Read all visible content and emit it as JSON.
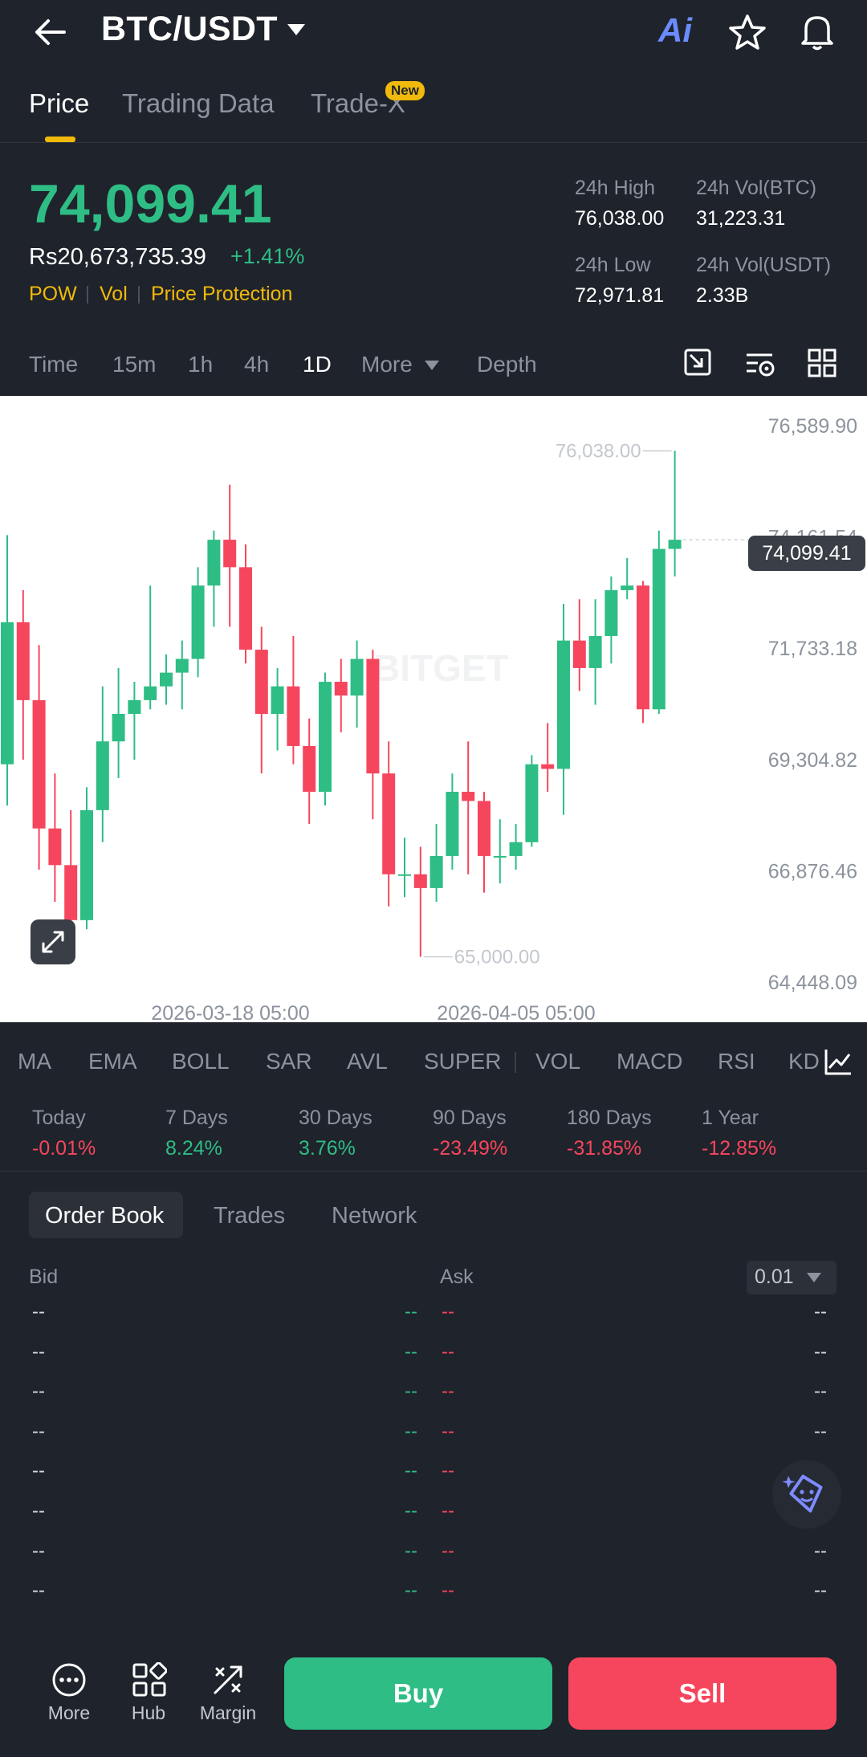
{
  "header": {
    "title": "BTC/USDT",
    "ai_label": "Ai"
  },
  "tabs": [
    {
      "label": "Price",
      "active": true
    },
    {
      "label": "Trading Data",
      "active": false
    },
    {
      "label": "Trade-X",
      "active": false,
      "badge": "New"
    }
  ],
  "price": {
    "last": "74,099.41",
    "fiat": "Rs20,673,735.39",
    "change_pct": "+1.41%",
    "tags": [
      "POW",
      "Vol",
      "Price Protection"
    ]
  },
  "stats": {
    "high_label": "24h High",
    "high": "76,038.00",
    "vol_btc_label": "24h Vol(BTC)",
    "vol_btc": "31,223.31",
    "low_label": "24h Low",
    "low": "72,971.81",
    "vol_usdt_label": "24h Vol(USDT)",
    "vol_usdt": "2.33B"
  },
  "intervals": [
    {
      "label": "Time",
      "active": false
    },
    {
      "label": "15m",
      "active": false
    },
    {
      "label": "1h",
      "active": false
    },
    {
      "label": "4h",
      "active": false
    },
    {
      "label": "1D",
      "active": true
    },
    {
      "label": "More",
      "active": false
    },
    {
      "label": "Depth",
      "active": false
    }
  ],
  "chart_data": {
    "type": "candlestick",
    "y_ticks": [
      "76,589.90",
      "74,161.54",
      "71,733.18",
      "69,304.82",
      "66,876.46",
      "64,448.09"
    ],
    "ylim": [
      64448.09,
      76589.9
    ],
    "x_ticks": [
      "2026-03-18 05:00",
      "2026-04-05 05:00"
    ],
    "last_price_label": "74,099.41",
    "last_price": 74099.41,
    "high_marker": "76,038.00",
    "low_marker": "65,000.00",
    "watermark": "BITGET",
    "candles": [
      {
        "o": 69200,
        "h": 74200,
        "l": 68300,
        "c": 72300
      },
      {
        "o": 72300,
        "h": 73000,
        "l": 69300,
        "c": 70600
      },
      {
        "o": 70600,
        "h": 71800,
        "l": 66900,
        "c": 67800
      },
      {
        "o": 67800,
        "h": 69000,
        "l": 66200,
        "c": 67000
      },
      {
        "o": 67000,
        "h": 68200,
        "l": 65300,
        "c": 65800
      },
      {
        "o": 65800,
        "h": 68700,
        "l": 65600,
        "c": 68200
      },
      {
        "o": 68200,
        "h": 70900,
        "l": 67500,
        "c": 69700
      },
      {
        "o": 69700,
        "h": 71300,
        "l": 68900,
        "c": 70300
      },
      {
        "o": 70300,
        "h": 71000,
        "l": 69300,
        "c": 70600
      },
      {
        "o": 70600,
        "h": 73100,
        "l": 70400,
        "c": 70900
      },
      {
        "o": 70900,
        "h": 71600,
        "l": 70500,
        "c": 71200
      },
      {
        "o": 71200,
        "h": 71900,
        "l": 70400,
        "c": 71500
      },
      {
        "o": 71500,
        "h": 73500,
        "l": 71100,
        "c": 73100
      },
      {
        "o": 73100,
        "h": 74300,
        "l": 72200,
        "c": 74100
      },
      {
        "o": 74100,
        "h": 75300,
        "l": 72200,
        "c": 73500
      },
      {
        "o": 73500,
        "h": 74000,
        "l": 71400,
        "c": 71700
      },
      {
        "o": 71700,
        "h": 72200,
        "l": 69000,
        "c": 70300
      },
      {
        "o": 70300,
        "h": 71300,
        "l": 69500,
        "c": 70900
      },
      {
        "o": 70900,
        "h": 72000,
        "l": 69200,
        "c": 69600
      },
      {
        "o": 69600,
        "h": 70200,
        "l": 67900,
        "c": 68600
      },
      {
        "o": 68600,
        "h": 71200,
        "l": 68300,
        "c": 71000
      },
      {
        "o": 71000,
        "h": 71500,
        "l": 69900,
        "c": 70700
      },
      {
        "o": 70700,
        "h": 71900,
        "l": 70000,
        "c": 71500
      },
      {
        "o": 71500,
        "h": 71700,
        "l": 68000,
        "c": 69000
      },
      {
        "o": 69000,
        "h": 69700,
        "l": 66100,
        "c": 66800
      },
      {
        "o": 66800,
        "h": 67600,
        "l": 66300,
        "c": 66800
      },
      {
        "o": 66800,
        "h": 67400,
        "l": 65000,
        "c": 66500
      },
      {
        "o": 66500,
        "h": 67900,
        "l": 66200,
        "c": 67200
      },
      {
        "o": 67200,
        "h": 69000,
        "l": 66900,
        "c": 68600
      },
      {
        "o": 68600,
        "h": 69700,
        "l": 66800,
        "c": 68400
      },
      {
        "o": 68400,
        "h": 68600,
        "l": 66400,
        "c": 67200
      },
      {
        "o": 67200,
        "h": 68000,
        "l": 66600,
        "c": 67200
      },
      {
        "o": 67200,
        "h": 67900,
        "l": 66900,
        "c": 67500
      },
      {
        "o": 67500,
        "h": 69400,
        "l": 67400,
        "c": 69200
      },
      {
        "o": 69200,
        "h": 70100,
        "l": 68600,
        "c": 69100
      },
      {
        "o": 69100,
        "h": 72700,
        "l": 68100,
        "c": 71900
      },
      {
        "o": 71900,
        "h": 72800,
        "l": 70800,
        "c": 71300
      },
      {
        "o": 71300,
        "h": 72800,
        "l": 70500,
        "c": 72000
      },
      {
        "o": 72000,
        "h": 73300,
        "l": 71400,
        "c": 73000
      },
      {
        "o": 73000,
        "h": 73700,
        "l": 72800,
        "c": 73100
      },
      {
        "o": 73100,
        "h": 73200,
        "l": 70100,
        "c": 70400
      },
      {
        "o": 70400,
        "h": 74300,
        "l": 70300,
        "c": 73900
      },
      {
        "o": 73900,
        "h": 76038,
        "l": 73300,
        "c": 74099.41
      }
    ]
  },
  "indicators": [
    "MA",
    "EMA",
    "BOLL",
    "SAR",
    "AVL",
    "SUPER",
    "VOL",
    "MACD",
    "RSI",
    "KD"
  ],
  "performance": [
    {
      "label": "Today",
      "value": "-0.01%",
      "dir": "down"
    },
    {
      "label": "7 Days",
      "value": "8.24%",
      "dir": "up"
    },
    {
      "label": "30 Days",
      "value": "3.76%",
      "dir": "up"
    },
    {
      "label": "90 Days",
      "value": "-23.49%",
      "dir": "down"
    },
    {
      "label": "180 Days",
      "value": "-31.85%",
      "dir": "down"
    },
    {
      "label": "1 Year",
      "value": "-12.85%",
      "dir": "down"
    }
  ],
  "orderbook": {
    "tabs": [
      "Order Book",
      "Trades",
      "Network"
    ],
    "bid_label": "Bid",
    "ask_label": "Ask",
    "precision": "0.01",
    "placeholder": "--"
  },
  "bottom_nav": [
    {
      "label": "More"
    },
    {
      "label": "Hub"
    },
    {
      "label": "Margin"
    }
  ],
  "actions": {
    "buy": "Buy",
    "sell": "Sell"
  },
  "colors": {
    "up": "#2ebd85",
    "down": "#f6465d",
    "accent": "#f0b90b",
    "bg": "#1f232b"
  }
}
